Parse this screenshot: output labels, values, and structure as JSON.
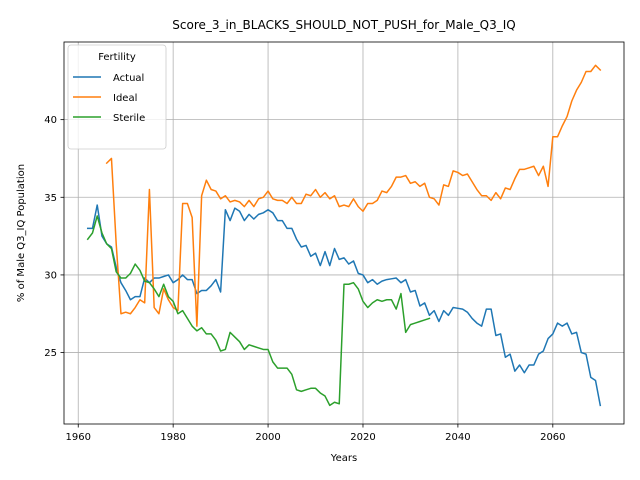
{
  "chart_data": {
    "type": "line",
    "title": "Score_3_in_BLACKS_SHOULD_NOT_PUSH_for_Male_Q3_IQ",
    "xlabel": "Years",
    "ylabel": "% of Male Q3_IQ Population",
    "xlim": [
      1957,
      2075
    ],
    "ylim": [
      20.4,
      45.0
    ],
    "xticks": [
      1960,
      1980,
      2000,
      2020,
      2040,
      2060
    ],
    "yticks": [
      25,
      30,
      35,
      40
    ],
    "grid": true,
    "legend": {
      "title": "Fertility",
      "placement": "top-left"
    },
    "series": [
      {
        "name": "Actual",
        "color": "#1f77b4",
        "points": [
          [
            1962,
            33.0
          ],
          [
            1963,
            33.0
          ],
          [
            1964,
            34.5
          ],
          [
            1965,
            32.5
          ],
          [
            1966,
            32.0
          ],
          [
            1967,
            31.8
          ],
          [
            1968,
            30.5
          ],
          [
            1969,
            29.5
          ],
          [
            1970,
            29.0
          ],
          [
            1971,
            28.4
          ],
          [
            1972,
            28.6
          ],
          [
            1973,
            28.6
          ],
          [
            1974,
            29.8
          ],
          [
            1975,
            29.5
          ],
          [
            1976,
            29.8
          ],
          [
            1977,
            29.8
          ],
          [
            1978,
            29.9
          ],
          [
            1979,
            30.0
          ],
          [
            1980,
            29.5
          ],
          [
            1981,
            29.7
          ],
          [
            1982,
            30.0
          ],
          [
            1983,
            29.7
          ],
          [
            1984,
            29.7
          ],
          [
            1985,
            28.8
          ],
          [
            1986,
            29.0
          ],
          [
            1987,
            29.0
          ],
          [
            1988,
            29.3
          ],
          [
            1989,
            29.7
          ],
          [
            1990,
            28.9
          ],
          [
            1991,
            34.2
          ],
          [
            1992,
            33.5
          ],
          [
            1993,
            34.3
          ],
          [
            1994,
            34.1
          ],
          [
            1995,
            33.5
          ],
          [
            1996,
            33.9
          ],
          [
            1997,
            33.6
          ],
          [
            1998,
            33.9
          ],
          [
            1999,
            34.0
          ],
          [
            2000,
            34.2
          ],
          [
            2001,
            34.0
          ],
          [
            2002,
            33.5
          ],
          [
            2003,
            33.5
          ],
          [
            2004,
            33.0
          ],
          [
            2005,
            33.0
          ],
          [
            2006,
            32.3
          ],
          [
            2007,
            31.8
          ],
          [
            2008,
            31.9
          ],
          [
            2009,
            31.2
          ],
          [
            2010,
            31.4
          ],
          [
            2011,
            30.6
          ],
          [
            2012,
            31.5
          ],
          [
            2013,
            30.6
          ],
          [
            2014,
            31.7
          ],
          [
            2015,
            31.0
          ],
          [
            2016,
            31.1
          ],
          [
            2017,
            30.7
          ],
          [
            2018,
            30.9
          ],
          [
            2019,
            30.1
          ],
          [
            2020,
            30.0
          ],
          [
            2021,
            29.5
          ],
          [
            2022,
            29.7
          ],
          [
            2023,
            29.4
          ],
          [
            2024,
            29.6
          ],
          [
            2025,
            29.7
          ],
          [
            2026,
            29.75
          ],
          [
            2027,
            29.8
          ],
          [
            2028,
            29.5
          ],
          [
            2029,
            29.7
          ],
          [
            2030,
            28.9
          ],
          [
            2031,
            29.0
          ],
          [
            2032,
            28.0
          ],
          [
            2033,
            28.2
          ],
          [
            2034,
            27.4
          ],
          [
            2035,
            27.7
          ],
          [
            2036,
            27.0
          ],
          [
            2037,
            27.7
          ],
          [
            2038,
            27.4
          ],
          [
            2039,
            27.9
          ],
          [
            2040,
            27.85
          ],
          [
            2041,
            27.8
          ],
          [
            2042,
            27.6
          ],
          [
            2043,
            27.2
          ],
          [
            2044,
            26.9
          ],
          [
            2045,
            26.7
          ],
          [
            2046,
            27.8
          ],
          [
            2047,
            27.8
          ],
          [
            2048,
            26.1
          ],
          [
            2049,
            26.2
          ],
          [
            2050,
            24.7
          ],
          [
            2051,
            24.9
          ],
          [
            2052,
            23.8
          ],
          [
            2053,
            24.2
          ],
          [
            2054,
            23.7
          ],
          [
            2055,
            24.2
          ],
          [
            2056,
            24.2
          ],
          [
            2057,
            24.9
          ],
          [
            2058,
            25.1
          ],
          [
            2059,
            25.9
          ],
          [
            2060,
            26.2
          ],
          [
            2061,
            26.9
          ],
          [
            2062,
            26.7
          ],
          [
            2063,
            26.9
          ],
          [
            2064,
            26.2
          ],
          [
            2065,
            26.3
          ],
          [
            2066,
            25.0
          ],
          [
            2067,
            24.9
          ],
          [
            2068,
            23.4
          ],
          [
            2069,
            23.2
          ],
          [
            2070,
            21.6
          ]
        ]
      },
      {
        "name": "Ideal",
        "color": "#ff7f0e",
        "points": [
          [
            1966,
            37.2
          ],
          [
            1967,
            37.5
          ],
          [
            1968,
            32.0
          ],
          [
            1969,
            27.5
          ],
          [
            1970,
            27.6
          ],
          [
            1971,
            27.5
          ],
          [
            1972,
            27.9
          ],
          [
            1973,
            28.4
          ],
          [
            1974,
            28.2
          ],
          [
            1975,
            35.5
          ],
          [
            1976,
            27.9
          ],
          [
            1977,
            27.5
          ],
          [
            1978,
            29.1
          ],
          [
            1979,
            28.4
          ],
          [
            1980,
            27.9
          ],
          [
            1981,
            27.7
          ],
          [
            1982,
            34.6
          ],
          [
            1983,
            34.6
          ],
          [
            1984,
            33.7
          ],
          [
            1985,
            26.7
          ],
          [
            1986,
            35.1
          ],
          [
            1987,
            36.1
          ],
          [
            1988,
            35.5
          ],
          [
            1989,
            35.4
          ],
          [
            1990,
            34.9
          ],
          [
            1991,
            35.1
          ],
          [
            1992,
            34.7
          ],
          [
            1993,
            34.8
          ],
          [
            1994,
            34.7
          ],
          [
            1995,
            34.4
          ],
          [
            1996,
            34.8
          ],
          [
            1997,
            34.4
          ],
          [
            1998,
            34.9
          ],
          [
            1999,
            35.0
          ],
          [
            2000,
            35.4
          ],
          [
            2001,
            34.9
          ],
          [
            2002,
            34.8
          ],
          [
            2003,
            34.8
          ],
          [
            2004,
            34.6
          ],
          [
            2005,
            35.0
          ],
          [
            2006,
            34.6
          ],
          [
            2007,
            34.6
          ],
          [
            2008,
            35.2
          ],
          [
            2009,
            35.1
          ],
          [
            2010,
            35.5
          ],
          [
            2011,
            35.0
          ],
          [
            2012,
            35.3
          ],
          [
            2013,
            34.9
          ],
          [
            2014,
            35.1
          ],
          [
            2015,
            34.4
          ],
          [
            2016,
            34.5
          ],
          [
            2017,
            34.4
          ],
          [
            2018,
            34.9
          ],
          [
            2019,
            34.4
          ],
          [
            2020,
            34.1
          ],
          [
            2021,
            34.6
          ],
          [
            2022,
            34.6
          ],
          [
            2023,
            34.8
          ],
          [
            2024,
            35.4
          ],
          [
            2025,
            35.3
          ],
          [
            2026,
            35.7
          ],
          [
            2027,
            36.3
          ],
          [
            2028,
            36.3
          ],
          [
            2029,
            36.4
          ],
          [
            2030,
            35.9
          ],
          [
            2031,
            36.0
          ],
          [
            2032,
            35.7
          ],
          [
            2033,
            35.9
          ],
          [
            2034,
            35.0
          ],
          [
            2035,
            34.9
          ],
          [
            2036,
            34.5
          ],
          [
            2037,
            35.8
          ],
          [
            2038,
            35.7
          ],
          [
            2039,
            36.7
          ],
          [
            2040,
            36.6
          ],
          [
            2041,
            36.4
          ],
          [
            2042,
            36.5
          ],
          [
            2043,
            36.0
          ],
          [
            2044,
            35.5
          ],
          [
            2045,
            35.1
          ],
          [
            2046,
            35.1
          ],
          [
            2047,
            34.8
          ],
          [
            2048,
            35.3
          ],
          [
            2049,
            34.9
          ],
          [
            2050,
            35.6
          ],
          [
            2051,
            35.5
          ],
          [
            2052,
            36.2
          ],
          [
            2053,
            36.8
          ],
          [
            2054,
            36.8
          ],
          [
            2055,
            36.9
          ],
          [
            2056,
            37.0
          ],
          [
            2057,
            36.4
          ],
          [
            2058,
            37.0
          ],
          [
            2059,
            35.7
          ],
          [
            2060,
            38.9
          ],
          [
            2061,
            38.9
          ],
          [
            2062,
            39.6
          ],
          [
            2063,
            40.2
          ],
          [
            2064,
            41.2
          ],
          [
            2065,
            41.9
          ],
          [
            2066,
            42.4
          ],
          [
            2067,
            43.1
          ],
          [
            2068,
            43.1
          ],
          [
            2069,
            43.5
          ],
          [
            2070,
            43.2
          ]
        ]
      },
      {
        "name": "Sterile",
        "color": "#2ca02c",
        "points": [
          [
            1962,
            32.3
          ],
          [
            1963,
            32.7
          ],
          [
            1964,
            33.8
          ],
          [
            1965,
            32.7
          ],
          [
            1966,
            32.0
          ],
          [
            1967,
            31.7
          ],
          [
            1968,
            30.2
          ],
          [
            1969,
            29.8
          ],
          [
            1970,
            29.8
          ],
          [
            1971,
            30.1
          ],
          [
            1972,
            30.7
          ],
          [
            1973,
            30.3
          ],
          [
            1974,
            29.6
          ],
          [
            1975,
            29.5
          ],
          [
            1976,
            29.1
          ],
          [
            1977,
            28.6
          ],
          [
            1978,
            29.4
          ],
          [
            1979,
            28.6
          ],
          [
            1980,
            28.3
          ],
          [
            1981,
            27.5
          ],
          [
            1982,
            27.7
          ],
          [
            1983,
            27.2
          ],
          [
            1984,
            26.7
          ],
          [
            1985,
            26.4
          ],
          [
            1986,
            26.6
          ],
          [
            1987,
            26.2
          ],
          [
            1988,
            26.2
          ],
          [
            1989,
            25.8
          ],
          [
            1990,
            25.1
          ],
          [
            1991,
            25.2
          ],
          [
            1992,
            26.3
          ],
          [
            1993,
            26.0
          ],
          [
            1994,
            25.7
          ],
          [
            1995,
            25.2
          ],
          [
            1996,
            25.5
          ],
          [
            1997,
            25.4
          ],
          [
            1998,
            25.3
          ],
          [
            1999,
            25.2
          ],
          [
            2000,
            25.2
          ],
          [
            2001,
            24.4
          ],
          [
            2002,
            24.0
          ],
          [
            2003,
            24.0
          ],
          [
            2004,
            24.0
          ],
          [
            2005,
            23.6
          ],
          [
            2006,
            22.6
          ],
          [
            2007,
            22.5
          ],
          [
            2008,
            22.6
          ],
          [
            2009,
            22.7
          ],
          [
            2010,
            22.7
          ],
          [
            2011,
            22.4
          ],
          [
            2012,
            22.2
          ],
          [
            2013,
            21.6
          ],
          [
            2014,
            21.8
          ],
          [
            2015,
            21.7
          ],
          [
            2016,
            29.4
          ],
          [
            2017,
            29.4
          ],
          [
            2018,
            29.5
          ],
          [
            2019,
            29.1
          ],
          [
            2020,
            28.3
          ],
          [
            2021,
            27.9
          ],
          [
            2022,
            28.2
          ],
          [
            2023,
            28.4
          ],
          [
            2024,
            28.3
          ],
          [
            2025,
            28.4
          ],
          [
            2026,
            28.4
          ],
          [
            2027,
            27.8
          ],
          [
            2028,
            28.8
          ],
          [
            2029,
            26.3
          ],
          [
            2030,
            26.8
          ],
          [
            2031,
            26.9
          ],
          [
            2032,
            27.0
          ],
          [
            2033,
            27.1
          ],
          [
            2034,
            27.2
          ]
        ]
      }
    ]
  }
}
